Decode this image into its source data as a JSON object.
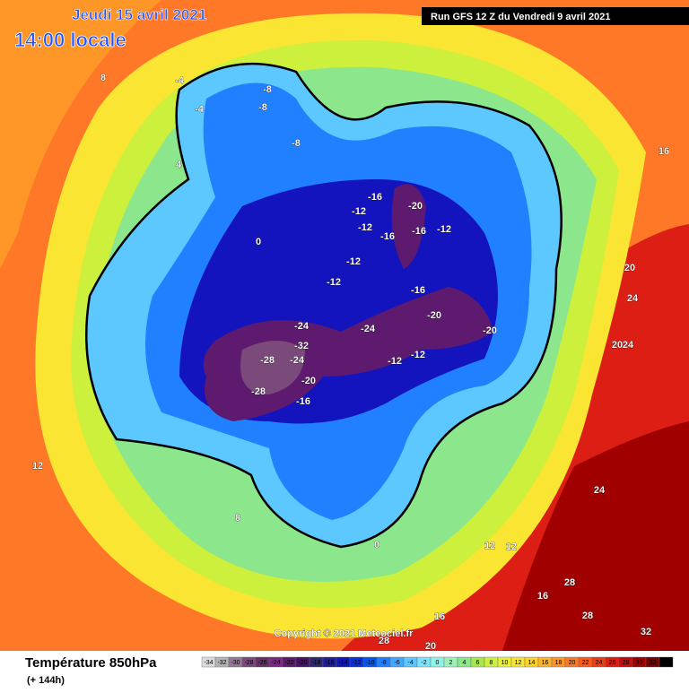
{
  "header": {
    "date": "Jeudi 15 avril 2021",
    "time": "14:00 locale",
    "run": "Run GFS 12 Z du Vendredi 9 avril 2021"
  },
  "copyright": "Copyright © 2021 Meteociel.fr",
  "footer": {
    "title": "Température 850hPa",
    "lead": "(+ 144h)"
  },
  "legend": {
    "ticks": [
      -34,
      -32,
      -30,
      -28,
      -26,
      -24,
      -22,
      -20,
      -18,
      -16,
      -14,
      -12,
      -10,
      -8,
      -6,
      -4,
      -2,
      0,
      2,
      4,
      6,
      8,
      10,
      12,
      14,
      16,
      18,
      20,
      22,
      24,
      26,
      28,
      30,
      32,
      34
    ],
    "colors": [
      "#dcdcdc",
      "#b4b4b4",
      "#967896",
      "#7a4a7a",
      "#643264",
      "#7a2a80",
      "#5e1a6e",
      "#461460",
      "#2c2a70",
      "#1e1e96",
      "#1414be",
      "#0a30d8",
      "#0058f0",
      "#2080ff",
      "#40a8ff",
      "#5cc8ff",
      "#7ae4ff",
      "#8ef2e8",
      "#9cf0b8",
      "#8ce68c",
      "#a8e650",
      "#ccf03c",
      "#e8f03c",
      "#fae632",
      "#ffd228",
      "#ffb428",
      "#ff9628",
      "#ff7828",
      "#ff5a1e",
      "#f03c14",
      "#dc1e14",
      "#c80a0a",
      "#a00000",
      "#780000",
      "#000000"
    ]
  },
  "map_labels": [
    "-8",
    "-8",
    "-8",
    "-12",
    "-16",
    "-20",
    "-16",
    "-12",
    "-12",
    "-16",
    "-12",
    "-12",
    "-16",
    "-20",
    "-24",
    "-24",
    "-28",
    "-32",
    "-24",
    "-28",
    "-20",
    "-16",
    "-12",
    "-20",
    "-12",
    "-4",
    "-4",
    "0",
    "0",
    "4",
    "8",
    "8",
    "12",
    "12",
    "16",
    "16",
    "20",
    "20",
    "24",
    "24",
    "28",
    "28",
    "28",
    "32",
    "24",
    "20",
    "12",
    "16"
  ]
}
